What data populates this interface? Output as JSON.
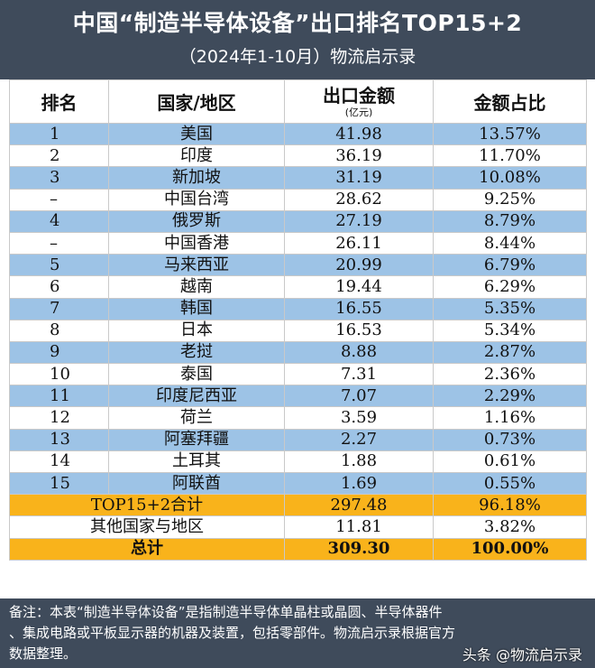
{
  "header": {
    "title": "中国“制造半导体设备”出口排名TOP15+2",
    "subtitle": "（2024年1-10月）物流启示录"
  },
  "table": {
    "columns": {
      "rank": "排名",
      "region": "国家/地区",
      "amount": "出口金额",
      "amount_unit": "(亿元)",
      "share": "金额占比"
    },
    "rows": [
      {
        "rank": "1",
        "region": "美国",
        "amount": "41.98",
        "share": "13.57%"
      },
      {
        "rank": "2",
        "region": "印度",
        "amount": "36.19",
        "share": "11.70%"
      },
      {
        "rank": "3",
        "region": "新加坡",
        "amount": "31.19",
        "share": "10.08%"
      },
      {
        "rank": "–",
        "region": "中国台湾",
        "amount": "28.62",
        "share": "9.25%"
      },
      {
        "rank": "4",
        "region": "俄罗斯",
        "amount": "27.19",
        "share": "8.79%"
      },
      {
        "rank": "–",
        "region": "中国香港",
        "amount": "26.11",
        "share": "8.44%"
      },
      {
        "rank": "5",
        "region": "马来西亚",
        "amount": "20.99",
        "share": "6.79%"
      },
      {
        "rank": "6",
        "region": "越南",
        "amount": "19.44",
        "share": "6.29%"
      },
      {
        "rank": "7",
        "region": "韩国",
        "amount": "16.55",
        "share": "5.35%"
      },
      {
        "rank": "8",
        "region": "日本",
        "amount": "16.53",
        "share": "5.34%"
      },
      {
        "rank": "9",
        "region": "老挝",
        "amount": "8.88",
        "share": "2.87%"
      },
      {
        "rank": "10",
        "region": "泰国",
        "amount": "7.31",
        "share": "2.36%"
      },
      {
        "rank": "11",
        "region": "印度尼西亚",
        "amount": "7.07",
        "share": "2.29%"
      },
      {
        "rank": "12",
        "region": "荷兰",
        "amount": "3.59",
        "share": "1.16%"
      },
      {
        "rank": "13",
        "region": "阿塞拜疆",
        "amount": "2.27",
        "share": "0.73%"
      },
      {
        "rank": "14",
        "region": "土耳其",
        "amount": "1.88",
        "share": "0.61%"
      },
      {
        "rank": "15",
        "region": "阿联酋",
        "amount": "1.69",
        "share": "0.55%"
      }
    ],
    "top_total": {
      "label": "TOP15+2合计",
      "amount": "297.48",
      "share": "96.18%"
    },
    "others": {
      "label": "其他国家与地区",
      "amount": "11.81",
      "share": "3.82%"
    },
    "grand_total": {
      "label": "总计",
      "amount": "309.30",
      "share": "100.00%"
    }
  },
  "note": {
    "line1": "备注：本表“制造半导体设备”是指制造半导体单晶柱或晶圆、半导体器件",
    "line2": "、集成电路或平板显示器的机器及装置，包括零部件。物流启示录根据官方",
    "line3": "数据整理。"
  },
  "watermark": "头条 @物流启示录",
  "colors": {
    "header_bg": "#3f4b5b",
    "row_blue": "#9dc3e6",
    "row_orange": "#f9b31b"
  }
}
